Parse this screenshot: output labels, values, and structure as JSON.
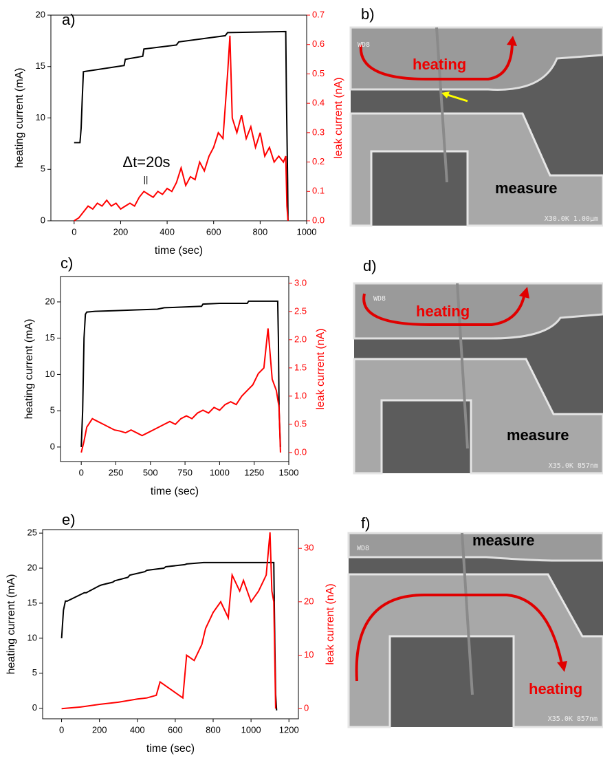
{
  "chart_data": [
    {
      "type": "line",
      "panel": "a)",
      "xlabel": "time (sec)",
      "ylabel": "heating current (mA)",
      "y2label": "leak current (nA)",
      "xlim": [
        -100,
        1000
      ],
      "xticks": [
        0,
        200,
        400,
        600,
        800,
        1000
      ],
      "ylim": [
        0,
        20
      ],
      "yticks": [
        0,
        5,
        10,
        15,
        20
      ],
      "y2lim": [
        0,
        0.7
      ],
      "y2ticks": [
        {
          "value": 0,
          "label": "0.0"
        },
        0.1,
        0.2,
        0.3,
        0.4,
        0.5,
        0.6,
        0.7
      ],
      "annotations": [
        "Δt=20s",
        "||"
      ],
      "series": [
        {
          "color": "#000000",
          "x": [
            0,
            25,
            30,
            35,
            40,
            215,
            220,
            295,
            300,
            440,
            450,
            650,
            660,
            910,
            913,
            918,
            920
          ],
          "values": [
            7.6,
            7.6,
            9,
            12,
            14.5,
            15.1,
            15.7,
            16.0,
            16.7,
            17.1,
            17.4,
            18.0,
            18.3,
            18.4,
            12,
            4,
            0
          ]
        },
        {
          "color": "#ff0000",
          "axis": "y2",
          "x": [
            0,
            20,
            40,
            60,
            80,
            100,
            120,
            140,
            160,
            180,
            200,
            220,
            240,
            260,
            280,
            300,
            320,
            340,
            360,
            380,
            400,
            420,
            440,
            460,
            480,
            500,
            520,
            540,
            560,
            580,
            600,
            620,
            640,
            660,
            670,
            680,
            700,
            720,
            740,
            760,
            780,
            800,
            820,
            840,
            860,
            880,
            900,
            910,
            915,
            920
          ],
          "values": [
            0,
            0.01,
            0.03,
            0.05,
            0.04,
            0.06,
            0.05,
            0.07,
            0.05,
            0.06,
            0.04,
            0.05,
            0.06,
            0.05,
            0.08,
            0.1,
            0.09,
            0.08,
            0.1,
            0.09,
            0.11,
            0.1,
            0.13,
            0.18,
            0.12,
            0.15,
            0.14,
            0.2,
            0.17,
            0.22,
            0.25,
            0.3,
            0.28,
            0.5,
            0.63,
            0.35,
            0.3,
            0.36,
            0.28,
            0.32,
            0.25,
            0.3,
            0.22,
            0.25,
            0.2,
            0.22,
            0.2,
            0.22,
            0.05,
            0
          ]
        }
      ]
    },
    {
      "type": "line",
      "panel": "c)",
      "xlabel": "time (sec)",
      "ylabel": "heating current (mA)",
      "y2label": "leak current (nA)",
      "xlim": [
        -150,
        1500
      ],
      "xticks": [
        0,
        250,
        500,
        750,
        1000,
        1250,
        1500
      ],
      "ylim": [
        -2,
        23.5
      ],
      "yticks": [
        0,
        5,
        10,
        15,
        20
      ],
      "y2lim": [
        -0.16,
        3.12
      ],
      "y2ticks": [
        {
          "value": 0,
          "label": "0.0"
        },
        0.5,
        {
          "value": 1,
          "label": "1.0"
        },
        1.5,
        {
          "value": 2,
          "label": "2.0"
        },
        2.5,
        {
          "value": 3,
          "label": "3.0"
        }
      ],
      "series": [
        {
          "color": "#000000",
          "x": [
            0,
            10,
            20,
            30,
            40,
            100,
            250,
            400,
            550,
            600,
            750,
            870,
            880,
            1000,
            1200,
            1210,
            1300,
            1420,
            1425,
            1430,
            1440
          ],
          "values": [
            0,
            5,
            15,
            18.3,
            18.6,
            18.7,
            18.8,
            18.9,
            19.0,
            19.2,
            19.3,
            19.4,
            19.7,
            19.8,
            19.8,
            20.1,
            20.1,
            20.1,
            15,
            5,
            0
          ]
        },
        {
          "color": "#ff0000",
          "axis": "y2",
          "x": [
            0,
            20,
            40,
            80,
            120,
            160,
            200,
            240,
            280,
            320,
            360,
            400,
            440,
            480,
            520,
            560,
            600,
            640,
            680,
            720,
            760,
            800,
            840,
            880,
            920,
            960,
            1000,
            1040,
            1080,
            1120,
            1160,
            1200,
            1240,
            1280,
            1320,
            1350,
            1380,
            1410,
            1430,
            1440
          ],
          "values": [
            0,
            0.2,
            0.45,
            0.6,
            0.55,
            0.5,
            0.45,
            0.4,
            0.38,
            0.35,
            0.4,
            0.35,
            0.3,
            0.35,
            0.4,
            0.45,
            0.5,
            0.55,
            0.5,
            0.6,
            0.65,
            0.6,
            0.7,
            0.75,
            0.7,
            0.8,
            0.75,
            0.85,
            0.9,
            0.85,
            1.0,
            1.1,
            1.2,
            1.4,
            1.5,
            2.2,
            1.3,
            1.1,
            0.8,
            0
          ]
        }
      ]
    },
    {
      "type": "line",
      "panel": "e)",
      "xlabel": "time (sec)",
      "ylabel": "heating current (mA)",
      "y2label": "leak current (nA)",
      "xlim": [
        -100,
        1250
      ],
      "xticks": [
        0,
        200,
        400,
        600,
        800,
        1000,
        1200
      ],
      "ylim": [
        -1.5,
        25.5
      ],
      "yticks": [
        0,
        5,
        10,
        15,
        20,
        25
      ],
      "y2lim": [
        -1.9,
        33.5
      ],
      "y2ticks": [
        0,
        10,
        20,
        30
      ],
      "series": [
        {
          "color": "#000000",
          "x": [
            0,
            10,
            20,
            30,
            120,
            130,
            200,
            210,
            270,
            280,
            350,
            360,
            440,
            450,
            540,
            550,
            650,
            660,
            750,
            760,
            1100,
            1120,
            1125,
            1130,
            1135
          ],
          "values": [
            10,
            14,
            15.3,
            15.3,
            16.5,
            16.5,
            17.5,
            17.6,
            18,
            18.2,
            18.7,
            19,
            19.5,
            19.7,
            20,
            20.2,
            20.5,
            20.6,
            20.8,
            20.8,
            20.8,
            20.8,
            10,
            2,
            -0.3
          ]
        },
        {
          "color": "#ff0000",
          "axis": "y2",
          "x": [
            0,
            100,
            200,
            300,
            400,
            450,
            500,
            520,
            560,
            600,
            640,
            660,
            700,
            740,
            760,
            800,
            840,
            880,
            900,
            940,
            960,
            1000,
            1040,
            1080,
            1100,
            1110,
            1120,
            1130
          ],
          "values": [
            0,
            0.3,
            0.8,
            1.2,
            1.8,
            2.0,
            2.5,
            5,
            4,
            3,
            2,
            10,
            9,
            12,
            15,
            18,
            20,
            17,
            25,
            22,
            24,
            20,
            22,
            25,
            33,
            22,
            20,
            0
          ]
        }
      ]
    }
  ],
  "images": [
    {
      "label": "b)",
      "top": "heating",
      "bottom": "measure",
      "wd": "WD8",
      "scale": "X30.0K 1.00µm"
    },
    {
      "label": "d)",
      "top": "heating",
      "bottom": "measure",
      "wd": "WD8",
      "scale": "X35.0K 857nm"
    },
    {
      "label": "f)",
      "top": "measure",
      "bottom": "heating",
      "wd": "WD8",
      "scale": "X35.0K 857nm"
    }
  ]
}
